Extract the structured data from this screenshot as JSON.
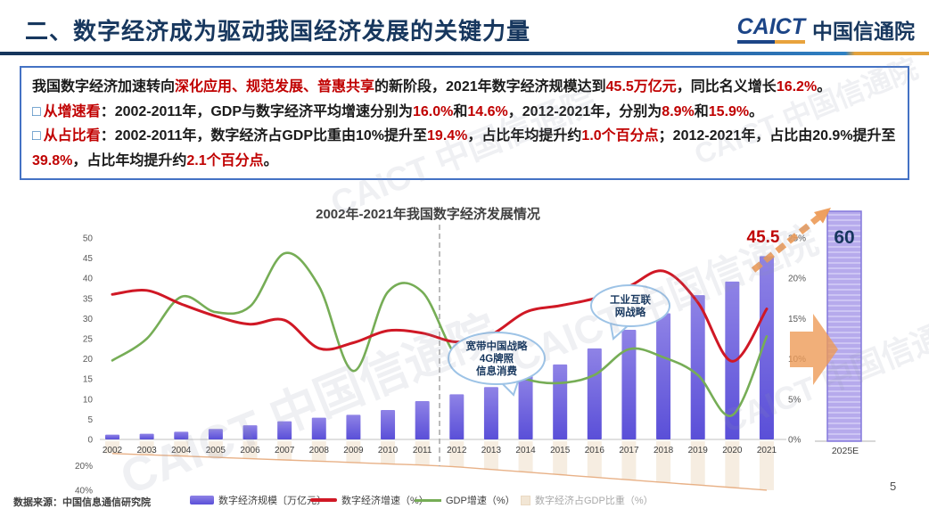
{
  "header": {
    "title": "二、数字经济成为驱动我国经济发展的关键力量",
    "logo_en": "CAICT",
    "logo_cn": "中国信通院"
  },
  "info_box": {
    "paragraphs": [
      {
        "segments": [
          {
            "t": "我国数字经济加速转向",
            "c": "k"
          },
          {
            "t": "深化应用、规范发展、普惠共享",
            "c": "r"
          },
          {
            "t": "的新阶段，2021年数字经济规模达到",
            "c": "k"
          },
          {
            "t": "45.5万亿元",
            "c": "r"
          },
          {
            "t": "，同比名义增长",
            "c": "k"
          },
          {
            "t": "16.2%",
            "c": "r"
          },
          {
            "t": "。",
            "c": "k"
          }
        ]
      },
      {
        "bullet": "□",
        "segments": [
          {
            "t": "从增速看",
            "c": "r"
          },
          {
            "t": "：2002-2011年，GDP与数字经济平均增速分别为",
            "c": "k"
          },
          {
            "t": "16.0%",
            "c": "r"
          },
          {
            "t": "和",
            "c": "k"
          },
          {
            "t": "14.6%",
            "c": "r"
          },
          {
            "t": "，2012-2021年，分别为",
            "c": "k"
          },
          {
            "t": "8.9%",
            "c": "r"
          },
          {
            "t": "和",
            "c": "k"
          },
          {
            "t": "15.9%",
            "c": "r"
          },
          {
            "t": "。",
            "c": "k"
          }
        ]
      },
      {
        "bullet": "□",
        "segments": [
          {
            "t": "从占比看",
            "c": "r"
          },
          {
            "t": "：2002-2011年，数字经济占GDP比重由10%提升至",
            "c": "k"
          },
          {
            "t": "19.4%",
            "c": "r"
          },
          {
            "t": "，占比年均提升约",
            "c": "k"
          },
          {
            "t": "1.0个百分点",
            "c": "r"
          },
          {
            "t": "；2012-2021年，占比由20.9%提升至",
            "c": "k"
          },
          {
            "t": "39.8%",
            "c": "r"
          },
          {
            "t": "，占比年均提升约",
            "c": "k"
          },
          {
            "t": "2.1个百分点",
            "c": "r"
          },
          {
            "t": "。",
            "c": "k"
          }
        ]
      }
    ]
  },
  "chart_data": {
    "type": "bar+line",
    "title": "2002年-2021年我国数字经济发展情况",
    "categories": [
      "2002",
      "2003",
      "2004",
      "2005",
      "2006",
      "2007",
      "2008",
      "2009",
      "2010",
      "2011",
      "2012",
      "2013",
      "2014",
      "2015",
      "2016",
      "2017",
      "2018",
      "2019",
      "2020",
      "2021"
    ],
    "series": [
      {
        "name": "数字经济规模〔万亿元〕",
        "type": "bar",
        "axis": "left",
        "values": [
          1.2,
          1.4,
          1.9,
          2.6,
          3.5,
          4.5,
          5.4,
          6.1,
          7.3,
          9.5,
          11.2,
          13.0,
          16.2,
          18.6,
          22.6,
          27.2,
          31.3,
          35.8,
          39.2,
          45.5
        ]
      },
      {
        "name": "数字经济增速（%）",
        "type": "line",
        "axis": "right",
        "color": "#d01825",
        "values": [
          18.0,
          18.5,
          16.8,
          15.3,
          14.3,
          14.8,
          11.3,
          12.0,
          13.5,
          13.2,
          12.1,
          13.0,
          15.8,
          16.6,
          17.5,
          19.0,
          20.9,
          17.0,
          9.7,
          16.2
        ]
      },
      {
        "name": "GDP增速（%）",
        "type": "line",
        "axis": "right",
        "color": "#76ad56",
        "values": [
          9.8,
          12.5,
          17.7,
          15.8,
          16.5,
          23.1,
          19.0,
          8.5,
          18.3,
          18.3,
          10.3,
          9.5,
          7.5,
          7.0,
          8.0,
          11.2,
          10.2,
          8.0,
          3.0,
          12.8
        ]
      },
      {
        "name": "数字经济占GDP比重（%）",
        "type": "bar-below",
        "axis": "below",
        "color": "#e6a87a",
        "values": [
          10.0,
          11.0,
          12.0,
          13.1,
          14.2,
          15.2,
          16.2,
          17.3,
          18.4,
          19.4,
          20.9,
          23.0,
          25.1,
          27.2,
          29.3,
          31.4,
          33.5,
          35.6,
          37.7,
          39.8
        ]
      }
    ],
    "left_axis": {
      "ticks": [
        50,
        45,
        40,
        35,
        30,
        25,
        20,
        15,
        10,
        5,
        0
      ],
      "range": [
        0,
        50
      ],
      "below_ticks": [
        "20%",
        "40%"
      ]
    },
    "right_axis": {
      "ticks": [
        "25%",
        "20%",
        "15%",
        "10%",
        "5%",
        "0%"
      ],
      "range": [
        0,
        25
      ]
    },
    "divider_between": [
      "2011",
      "2012"
    ],
    "highlight_label": "45.5",
    "forecast": {
      "category": "2025E",
      "value": 60,
      "value_label": "60"
    },
    "annotations": [
      {
        "lines": [
          "宽带中国战略",
          "4G牌照",
          "信息消费"
        ]
      },
      {
        "lines": [
          "工业互联",
          "网战略"
        ]
      }
    ],
    "legend": [
      {
        "label": "数字经济规模〔万亿元〕"
      },
      {
        "label": "数字经济增速（%）"
      },
      {
        "label": "GDP增速（%）"
      },
      {
        "label": "数字经济占GDP比重（%）"
      }
    ],
    "colors": {
      "bar_top": "#8f83e6",
      "bar_bottom": "#5a4fd8",
      "digital_growth_line": "#d01825",
      "gdp_growth_line": "#76ad56",
      "forecast_bar": "#b6aaec",
      "forecast_border": "#8478dc",
      "share_tint": "#eedcc4",
      "orange_arrow": "#ed9b57",
      "highlight_red": "#c00000",
      "bubble_border": "#9dc3e6",
      "title_navy": "#17375e",
      "box_border": "#4472c4"
    }
  },
  "footer": {
    "source": "数据来源：中国信息通信研究院",
    "page": "5"
  },
  "watermark": {
    "text": "CAICT 中国信通院"
  }
}
